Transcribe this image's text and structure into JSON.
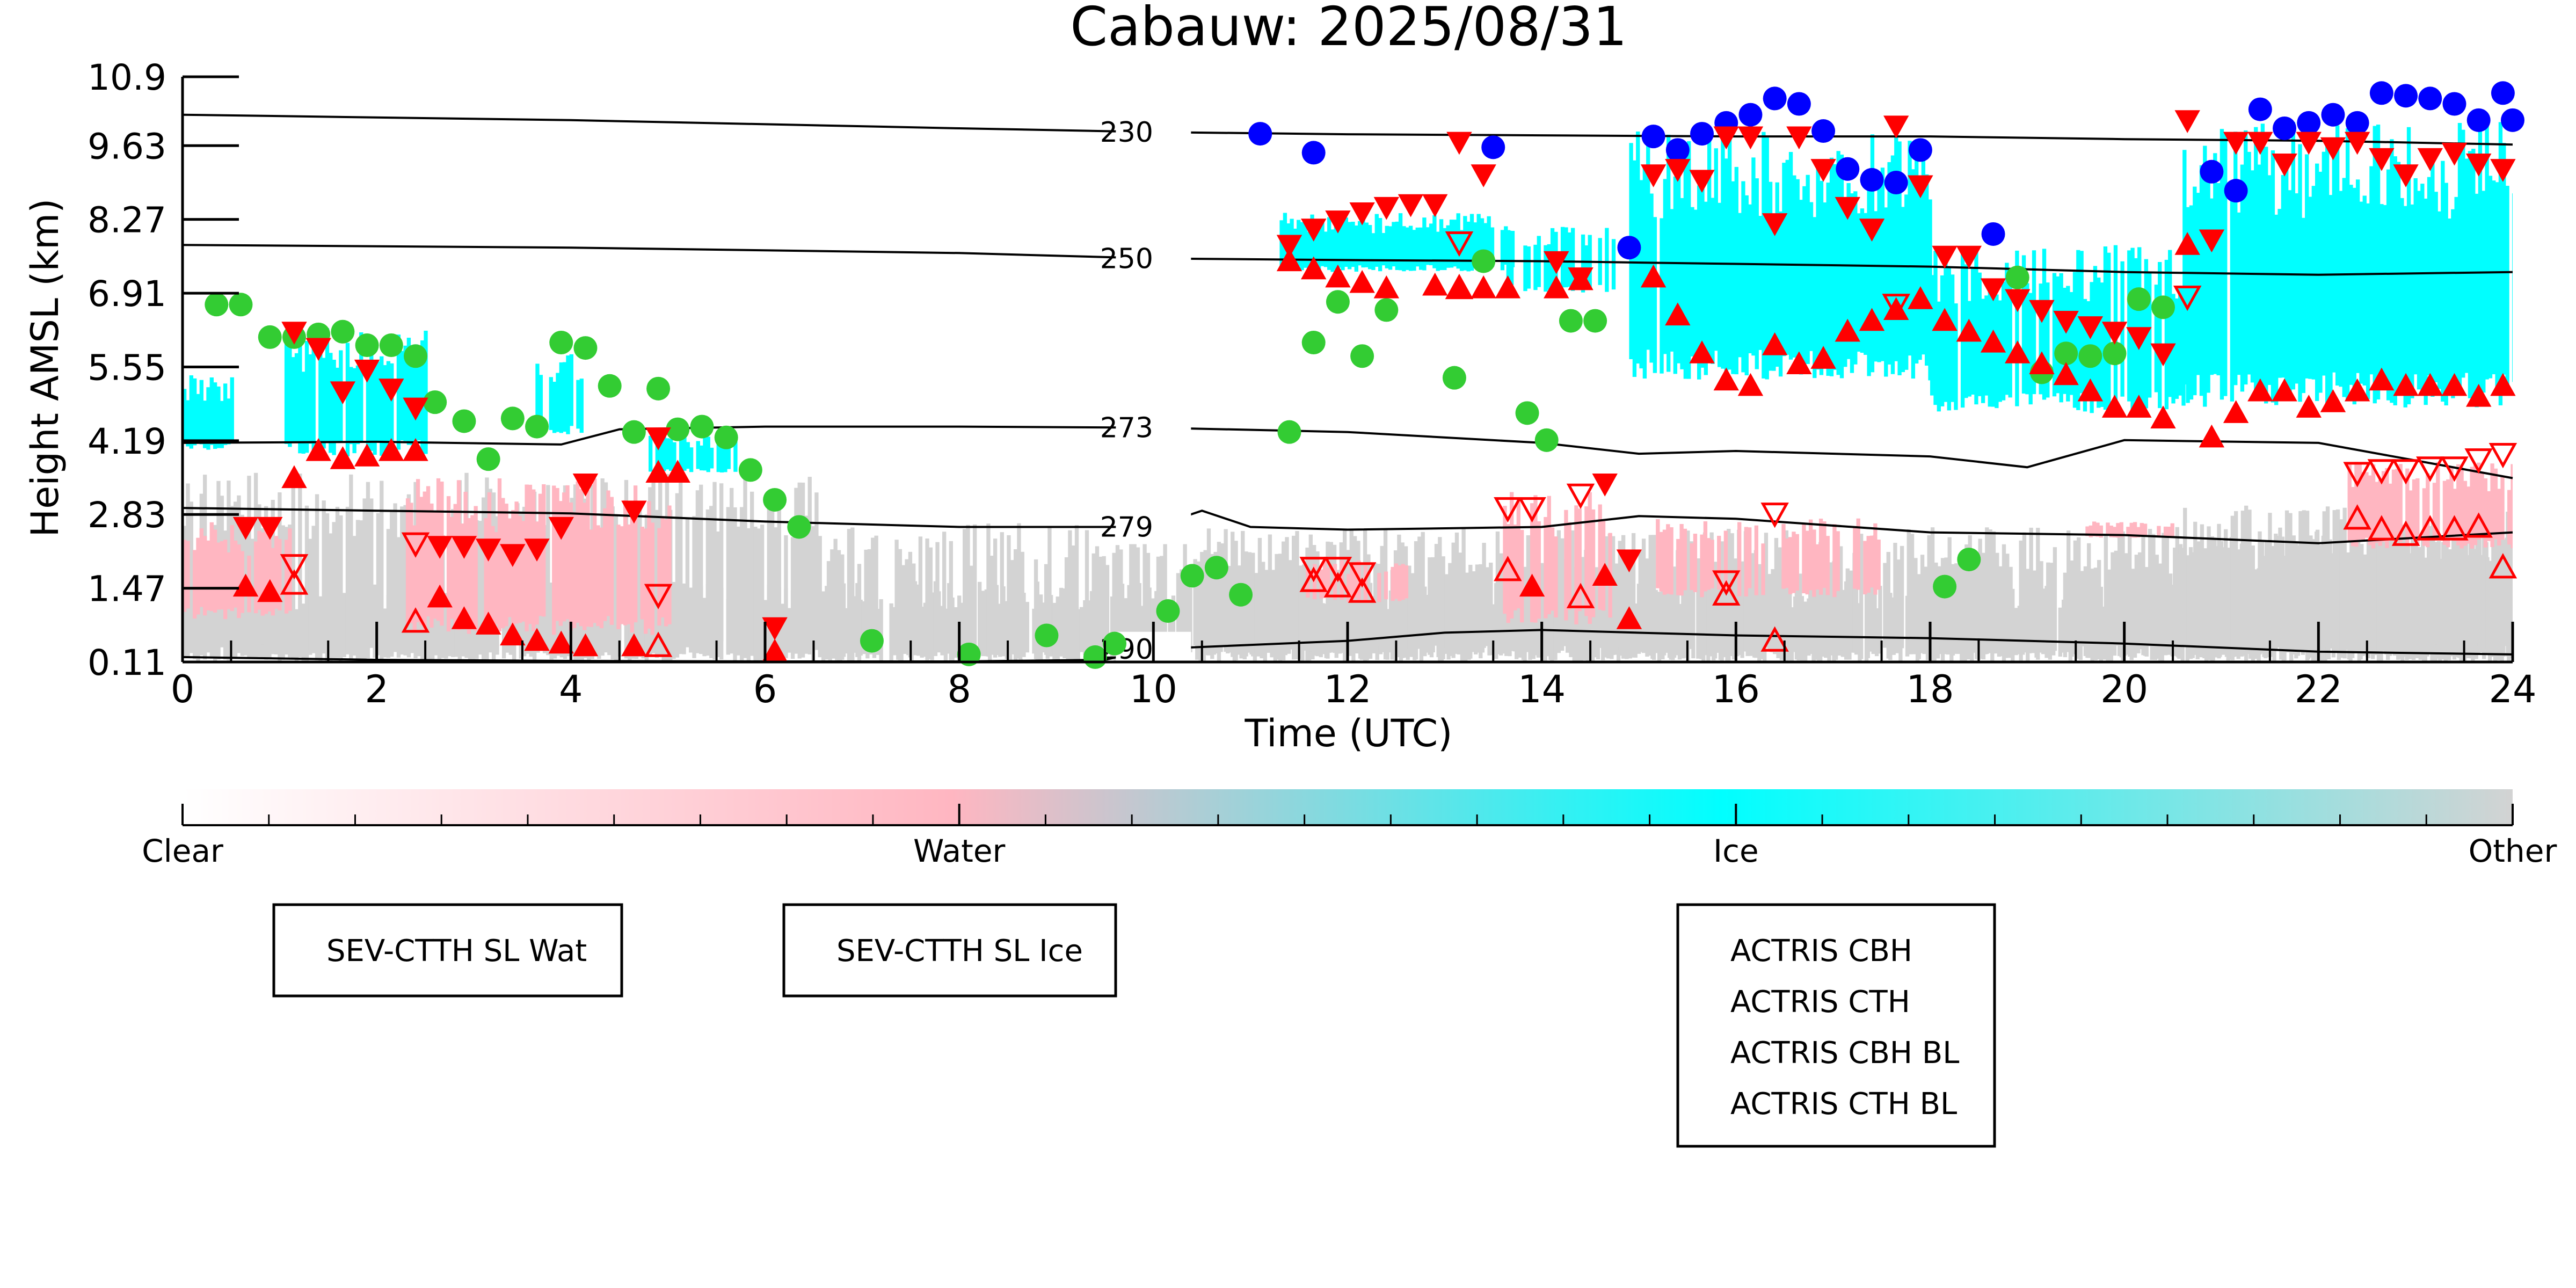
{
  "chart_data": {
    "type": "scatter",
    "title": "Cabauw: 2025/08/31",
    "xlabel": "Time (UTC)",
    "ylabel": "Height AMSL (km)",
    "xlim": [
      0,
      24
    ],
    "ylim": [
      0.11,
      10.9
    ],
    "xticks": [
      "0",
      "2",
      "4",
      "6",
      "8",
      "10",
      "12",
      "14",
      "16",
      "18",
      "20",
      "22",
      "24"
    ],
    "yticks": [
      "0.11",
      "1.47",
      "2.83",
      "4.19",
      "5.55",
      "6.91",
      "8.27",
      "9.63",
      "10.9"
    ],
    "colorbar": {
      "labels": [
        "Clear",
        "Water",
        "Ice",
        "Other"
      ],
      "colors": [
        "#ffffff",
        "#ffb6c1",
        "#00ffff",
        "#d3d3d3"
      ]
    },
    "isotherms": [
      {
        "label": "230",
        "x": [
          0,
          4,
          8,
          10,
          12,
          14,
          16,
          18,
          20,
          22,
          24
        ],
        "y": [
          10.2,
          10.1,
          9.95,
          9.88,
          9.84,
          9.82,
          9.8,
          9.8,
          9.75,
          9.72,
          9.65
        ]
      },
      {
        "label": "250",
        "x": [
          0,
          4,
          8,
          10,
          12,
          14,
          16,
          18,
          20,
          22,
          24
        ],
        "y": [
          7.8,
          7.75,
          7.65,
          7.55,
          7.52,
          7.5,
          7.45,
          7.4,
          7.3,
          7.25,
          7.3
        ]
      },
      {
        "label": "273",
        "x": [
          0,
          2,
          3.9,
          4.5,
          6,
          8,
          10,
          12,
          14,
          15,
          16,
          18,
          19,
          20,
          22,
          24
        ],
        "y": [
          4.15,
          4.17,
          4.12,
          4.4,
          4.45,
          4.45,
          4.43,
          4.35,
          4.15,
          3.95,
          4.0,
          3.9,
          3.7,
          4.2,
          4.15,
          3.5
        ]
      },
      {
        "label": "279",
        "x": [
          0,
          2,
          4,
          6,
          8,
          10,
          10.5,
          11,
          12,
          14,
          15,
          16,
          18,
          20,
          22,
          24
        ],
        "y": [
          2.95,
          2.9,
          2.85,
          2.7,
          2.6,
          2.6,
          2.9,
          2.6,
          2.55,
          2.6,
          2.8,
          2.75,
          2.5,
          2.45,
          2.3,
          2.5
        ]
      },
      {
        "label": "290",
        "x": [
          0,
          2,
          4,
          6,
          8,
          9.5,
          10,
          12,
          13,
          14,
          16,
          18,
          20,
          22,
          24
        ],
        "y": [
          0.2,
          0.15,
          0.13,
          0.12,
          0.12,
          0.15,
          0.35,
          0.5,
          0.65,
          0.7,
          0.6,
          0.55,
          0.45,
          0.3,
          0.25
        ]
      }
    ],
    "series": [
      {
        "name": "SEV-CTTH SL Wat",
        "marker": "filled-circle",
        "color": "#33cc33",
        "x": [
          0.35,
          0.6,
          0.9,
          1.15,
          1.4,
          1.65,
          1.9,
          2.15,
          2.4,
          2.6,
          2.9,
          3.15,
          3.4,
          3.65,
          3.9,
          4.15,
          4.4,
          4.65,
          4.9,
          5.1,
          5.35,
          5.6,
          5.85,
          6.1,
          6.35,
          7.1,
          8.1,
          8.9,
          9.4,
          9.6,
          10.15,
          10.4,
          10.65,
          10.9,
          11.4,
          11.65,
          11.9,
          12.15,
          12.4,
          13.1,
          13.4,
          13.85,
          14.05,
          14.3,
          14.55,
          18.15,
          18.4,
          18.9,
          19.15,
          19.4,
          19.65,
          19.9,
          20.15,
          20.4
        ],
        "y": [
          6.7,
          6.7,
          6.1,
          6.1,
          6.15,
          6.2,
          5.95,
          5.95,
          5.75,
          4.9,
          4.55,
          3.85,
          4.6,
          4.45,
          6.0,
          5.9,
          5.2,
          4.35,
          5.15,
          4.4,
          4.45,
          4.25,
          3.65,
          3.1,
          2.6,
          0.5,
          0.25,
          0.6,
          0.2,
          0.45,
          1.05,
          1.7,
          1.85,
          1.35,
          4.35,
          6.0,
          6.75,
          5.75,
          6.6,
          5.35,
          7.5,
          4.7,
          4.2,
          6.4,
          6.4,
          1.5,
          2.0,
          7.2,
          5.45,
          5.8,
          5.75,
          5.8,
          6.8,
          6.65
        ]
      },
      {
        "name": "SEV-CTTH SL Ice",
        "marker": "filled-circle",
        "color": "#0000ff",
        "x": [
          11.1,
          11.65,
          13.5,
          14.9,
          15.15,
          15.4,
          15.65,
          15.9,
          16.15,
          16.4,
          16.65,
          16.9,
          17.15,
          17.4,
          17.65,
          17.9,
          18.65,
          20.9,
          21.15,
          21.4,
          21.65,
          21.9,
          22.15,
          22.4,
          22.65,
          22.9,
          23.15,
          23.4,
          23.65,
          23.9,
          24.0
        ],
        "y": [
          9.85,
          9.5,
          9.6,
          7.75,
          9.8,
          9.55,
          9.85,
          10.05,
          10.2,
          10.5,
          10.4,
          9.9,
          9.2,
          9.0,
          8.95,
          9.55,
          8.0,
          9.15,
          8.8,
          10.3,
          9.95,
          10.05,
          10.2,
          10.05,
          10.6,
          10.55,
          10.5,
          10.4,
          10.1,
          10.6,
          10.1
        ]
      },
      {
        "name": "ACTRIS CBH",
        "marker": "filled-triangle-up",
        "color": "#ff0000",
        "x": [
          0.65,
          0.9,
          1.15,
          1.4,
          1.65,
          1.9,
          2.15,
          2.4,
          2.65,
          2.9,
          3.15,
          3.4,
          3.65,
          3.9,
          4.15,
          4.65,
          4.9,
          5.1,
          6.1,
          11.4,
          11.65,
          11.9,
          12.15,
          12.4,
          12.9,
          13.15,
          13.4,
          13.65,
          13.9,
          14.15,
          14.4,
          14.65,
          14.9,
          15.15,
          15.4,
          15.65,
          15.9,
          16.15,
          16.4,
          16.65,
          16.9,
          17.15,
          17.4,
          17.65,
          17.9,
          18.15,
          18.4,
          18.65,
          18.9,
          19.15,
          19.4,
          19.65,
          19.9,
          20.15,
          20.4,
          20.65,
          20.9,
          21.15,
          21.4,
          21.65,
          21.9,
          22.15,
          22.4,
          22.65,
          22.9,
          23.15,
          23.4,
          23.65,
          23.9
        ],
        "y": [
          1.5,
          1.4,
          3.5,
          4.0,
          3.85,
          3.9,
          4.0,
          4.0,
          1.3,
          0.9,
          0.8,
          0.6,
          0.5,
          0.45,
          0.4,
          0.4,
          3.6,
          3.6,
          0.3,
          7.5,
          7.35,
          7.2,
          7.1,
          7.0,
          7.05,
          7.0,
          7.0,
          7.0,
          1.5,
          7.0,
          7.15,
          1.7,
          0.9,
          7.2,
          6.5,
          5.8,
          5.3,
          5.2,
          5.95,
          5.6,
          5.7,
          6.2,
          6.4,
          6.6,
          6.8,
          6.4,
          6.2,
          6.0,
          5.8,
          5.6,
          5.4,
          5.1,
          4.8,
          4.8,
          4.6,
          7.8,
          4.25,
          4.7,
          5.1,
          5.1,
          4.8,
          4.9,
          5.1,
          5.3,
          5.2,
          5.2,
          5.2,
          5.0,
          5.2
        ]
      },
      {
        "name": "ACTRIS CTH",
        "marker": "filled-triangle-down",
        "color": "#ff0000",
        "x": [
          0.65,
          0.9,
          1.15,
          1.4,
          1.65,
          1.9,
          2.15,
          2.4,
          2.65,
          2.9,
          3.15,
          3.4,
          3.65,
          3.9,
          4.15,
          4.65,
          4.9,
          6.1,
          11.4,
          11.65,
          11.9,
          12.15,
          12.4,
          12.65,
          12.9,
          13.15,
          13.4,
          14.15,
          14.4,
          14.65,
          14.9,
          15.15,
          15.4,
          15.65,
          15.9,
          16.15,
          16.4,
          16.65,
          16.9,
          17.15,
          17.4,
          17.65,
          17.9,
          18.15,
          18.4,
          18.65,
          18.9,
          19.15,
          19.4,
          19.65,
          19.9,
          20.15,
          20.4,
          20.65,
          20.9,
          21.15,
          21.4,
          21.65,
          21.9,
          22.15,
          22.4,
          22.65,
          22.9,
          23.15,
          23.4,
          23.65,
          23.9
        ],
        "y": [
          2.6,
          2.6,
          6.2,
          5.9,
          5.1,
          5.5,
          5.15,
          4.8,
          2.25,
          2.25,
          2.2,
          2.1,
          2.2,
          2.6,
          3.4,
          2.9,
          4.25,
          0.75,
          7.8,
          8.1,
          8.25,
          8.4,
          8.5,
          8.55,
          8.55,
          9.7,
          9.1,
          7.5,
          7.2,
          3.4,
          2.0,
          9.1,
          9.2,
          9.0,
          9.8,
          9.8,
          8.2,
          9.8,
          9.2,
          8.5,
          8.1,
          10.0,
          8.9,
          7.6,
          7.6,
          7.0,
          6.8,
          6.6,
          6.4,
          6.3,
          6.2,
          6.1,
          5.8,
          10.1,
          7.9,
          9.7,
          9.7,
          9.3,
          9.7,
          9.6,
          9.7,
          9.4,
          9.1,
          9.4,
          9.5,
          9.3,
          9.2
        ]
      },
      {
        "name": "ACTRIS CBH BL",
        "marker": "open-triangle-up",
        "color": "#ff0000",
        "x": [
          1.15,
          2.4,
          4.9,
          11.65,
          11.9,
          12.15,
          13.15,
          13.65,
          14.4,
          15.9,
          16.4,
          22.4,
          22.65,
          22.9,
          23.15,
          23.4,
          23.65,
          23.9
        ],
        "y": [
          1.55,
          0.85,
          0.4,
          1.6,
          1.5,
          1.4,
          7.0,
          1.8,
          1.3,
          1.35,
          0.5,
          2.75,
          2.55,
          2.45,
          2.55,
          2.55,
          2.6,
          1.85
        ]
      },
      {
        "name": "ACTRIS CTH BL",
        "marker": "open-triangle-down",
        "color": "#ff0000",
        "x": [
          1.15,
          2.4,
          4.9,
          11.65,
          11.9,
          12.15,
          13.15,
          13.65,
          13.9,
          14.4,
          15.9,
          16.4,
          17.65,
          20.65,
          22.4,
          22.65,
          22.9,
          23.15,
          23.4,
          23.65,
          23.9
        ],
        "y": [
          1.9,
          2.3,
          1.35,
          1.85,
          1.85,
          1.75,
          7.85,
          2.95,
          2.95,
          3.2,
          1.6,
          2.85,
          6.7,
          6.85,
          3.6,
          3.65,
          3.65,
          3.7,
          3.7,
          3.85,
          3.95
        ]
      }
    ]
  }
}
